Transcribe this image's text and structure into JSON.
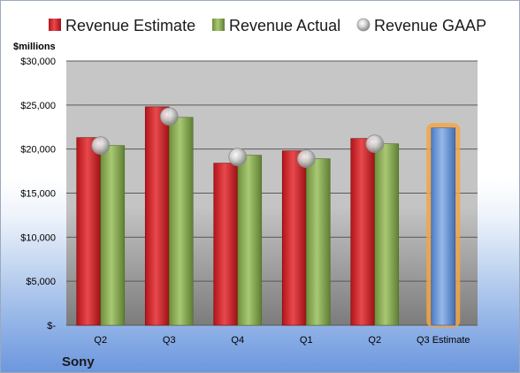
{
  "chart_data": {
    "type": "bar",
    "ylabel": "$millions",
    "ylim": [
      0,
      30000
    ],
    "yticks": [
      {
        "value": 0,
        "label": "$-"
      },
      {
        "value": 5000,
        "label": "$5,000"
      },
      {
        "value": 10000,
        "label": "$10,000"
      },
      {
        "value": 15000,
        "label": "$15,000"
      },
      {
        "value": 20000,
        "label": "$20,000"
      },
      {
        "value": 25000,
        "label": "$25,000"
      },
      {
        "value": 30000,
        "label": "$30,000"
      }
    ],
    "categories": [
      "Q2",
      "Q3",
      "Q4",
      "Q1",
      "Q2",
      "Q3 Estimate"
    ],
    "series": [
      {
        "name": "Revenue Estimate",
        "type": "bar",
        "color": "#d0252a",
        "values": [
          21300,
          24800,
          18400,
          19800,
          21200,
          null
        ]
      },
      {
        "name": "Revenue Actual",
        "type": "bar",
        "color": "#8aad55",
        "values": [
          20400,
          23600,
          19300,
          18900,
          20600,
          null
        ]
      },
      {
        "name": "Revenue GAAP",
        "type": "marker",
        "color": "#c8c8c8",
        "values": [
          20400,
          23700,
          19100,
          18900,
          20600,
          null
        ]
      },
      {
        "name": "Q3 Estimate",
        "type": "bar",
        "color": "#6e9bd8",
        "highlight": "#f5a542",
        "values": [
          null,
          null,
          null,
          null,
          null,
          22400
        ]
      }
    ],
    "grid": true,
    "legend_position": "top",
    "company": "Sony"
  }
}
